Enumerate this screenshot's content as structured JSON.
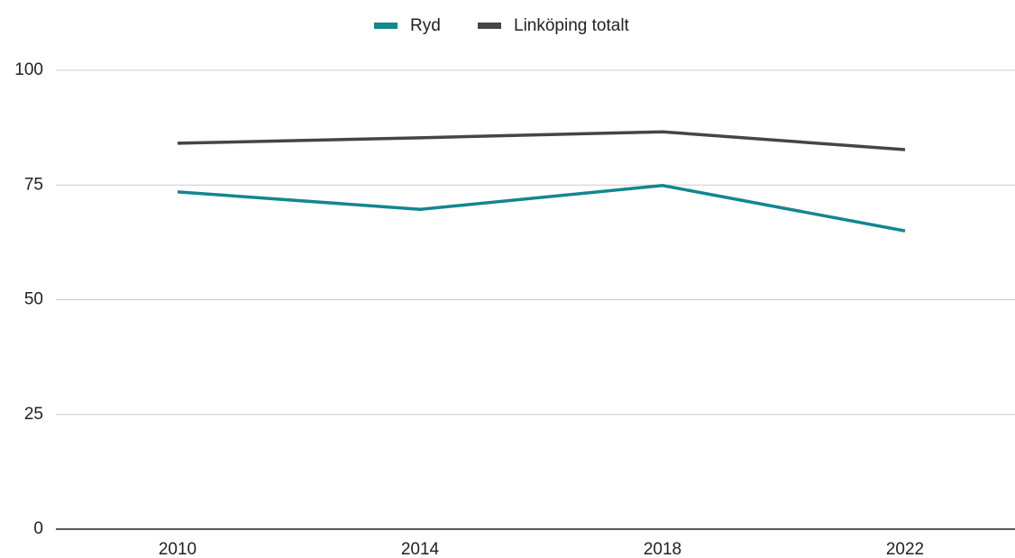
{
  "chart_data": {
    "type": "line",
    "categories": [
      "2010",
      "2014",
      "2018",
      "2022"
    ],
    "series": [
      {
        "name": "Ryd",
        "color": "#13868f",
        "values": [
          73.5,
          69.7,
          74.9,
          65.0
        ]
      },
      {
        "name": "Linköping totalt",
        "color": "#454545",
        "values": [
          84.1,
          85.3,
          86.6,
          82.7
        ]
      }
    ],
    "ylim": [
      0,
      100
    ],
    "yticks": [
      0,
      25,
      50,
      75,
      100
    ],
    "grid": true,
    "legend": "top"
  }
}
